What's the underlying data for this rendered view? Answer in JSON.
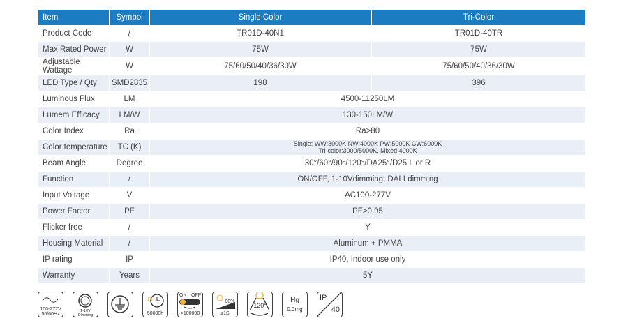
{
  "header": {
    "item": "Item",
    "symbol": "Symbol",
    "single": "Single Color",
    "tri": "Tri-Color"
  },
  "rows": [
    {
      "item": "Product Code",
      "symbol": "/",
      "single": "TR01D-40N1",
      "tri": "TR01D-40TR"
    },
    {
      "item": "Max Rated Power",
      "symbol": "W",
      "single": "75W",
      "tri": "75W"
    },
    {
      "item": "Adjustable Wattage",
      "symbol": "W",
      "single": "75/60/50/40/36/30W",
      "tri": "75/60/50/40/36/30W"
    },
    {
      "item": "LED Type / Qty",
      "symbol": "SMD2835",
      "single": "198",
      "tri": "396"
    },
    {
      "item": "Luminous Flux",
      "symbol": "LM",
      "value": "4500-11250LM"
    },
    {
      "item": "Lumem Efficacy",
      "symbol": "LM/W",
      "value": "130-150LM/W"
    },
    {
      "item": "Color Index",
      "symbol": "Ra",
      "value": "Ra>80"
    },
    {
      "item": "Color temperature",
      "symbol": "TC (K)",
      "value": "Single: WW:3000K  NW:4000K  PW:5000K  CW:6000K",
      "value2": "Tri-color:3000/5000K, Mixed:4000K"
    },
    {
      "item": "Beam Angle",
      "symbol": "Degree",
      "value": "30°/60°/90°/120°/DA25°/D25 L or R"
    },
    {
      "item": "Function",
      "symbol": "/",
      "value": "ON/OFF, 1-10Vdimming, DALI dimming"
    },
    {
      "item": "Input Voltage",
      "symbol": "V",
      "value": "AC100-277V"
    },
    {
      "item": "Power Factor",
      "symbol": "PF",
      "value": "PF>0.95"
    },
    {
      "item": "Flicker free",
      "symbol": "/",
      "value": "Y"
    },
    {
      "item": "Housing Material",
      "symbol": "/",
      "value": "Aluminum + PMMA"
    },
    {
      "item": "IP rating",
      "symbol": "IP",
      "value": "IP40, Indoor use only"
    },
    {
      "item": "Warranty",
      "symbol": "Years",
      "value": "5Y"
    }
  ],
  "icons": {
    "voltage": [
      "100-277V",
      "50/60Hz"
    ],
    "dimming": [
      "1-10V",
      "Dimming"
    ],
    "lifetime": "50000h",
    "switch": [
      "ON",
      "OFF",
      ">100000"
    ],
    "startup": [
      "80%",
      "≤1S"
    ],
    "beam": "120°",
    "mercury": [
      "Hg",
      "0.0mg"
    ],
    "ip": [
      "IP",
      "40"
    ]
  },
  "colors": {
    "header": "#1b7cc2",
    "alt_row": "#e9eef7",
    "accent": "#f0b53a"
  }
}
